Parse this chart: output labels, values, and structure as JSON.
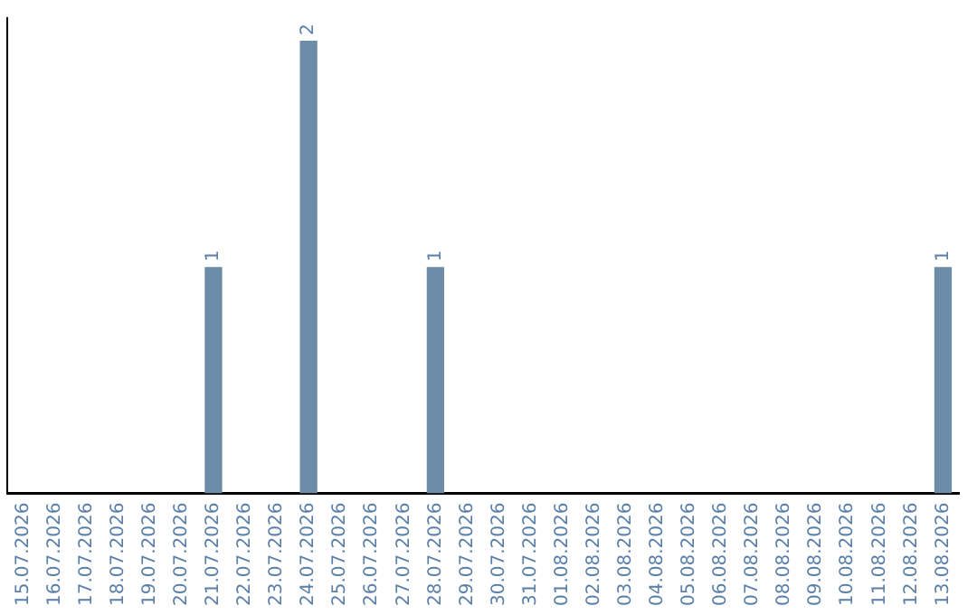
{
  "chart_data": {
    "type": "bar",
    "categories": [
      "15.07.2026",
      "16.07.2026",
      "17.07.2026",
      "18.07.2026",
      "19.07.2026",
      "20.07.2026",
      "21.07.2026",
      "22.07.2026",
      "23.07.2026",
      "24.07.2026",
      "25.07.2026",
      "26.07.2026",
      "27.07.2026",
      "28.07.2026",
      "29.07.2026",
      "30.07.2026",
      "31.07.2026",
      "01.08.2026",
      "02.08.2026",
      "03.08.2026",
      "04.08.2026",
      "05.08.2026",
      "06.08.2026",
      "07.08.2026",
      "08.08.2026",
      "09.08.2026",
      "10.08.2026",
      "11.08.2026",
      "12.08.2026",
      "13.08.2026"
    ],
    "values": [
      0,
      0,
      0,
      0,
      0,
      0,
      1,
      0,
      0,
      2,
      0,
      0,
      0,
      1,
      0,
      0,
      0,
      0,
      0,
      0,
      0,
      0,
      0,
      0,
      0,
      0,
      0,
      0,
      0,
      1
    ],
    "value_labels": [
      null,
      null,
      null,
      null,
      null,
      null,
      "1",
      null,
      null,
      "2",
      null,
      null,
      null,
      "1",
      null,
      null,
      null,
      null,
      null,
      null,
      null,
      null,
      null,
      null,
      null,
      null,
      null,
      null,
      null,
      "1"
    ],
    "color": "#6d8ca8",
    "ylim": [
      0,
      2.1
    ],
    "tick_labels": "x",
    "grid": false,
    "legend": false
  }
}
